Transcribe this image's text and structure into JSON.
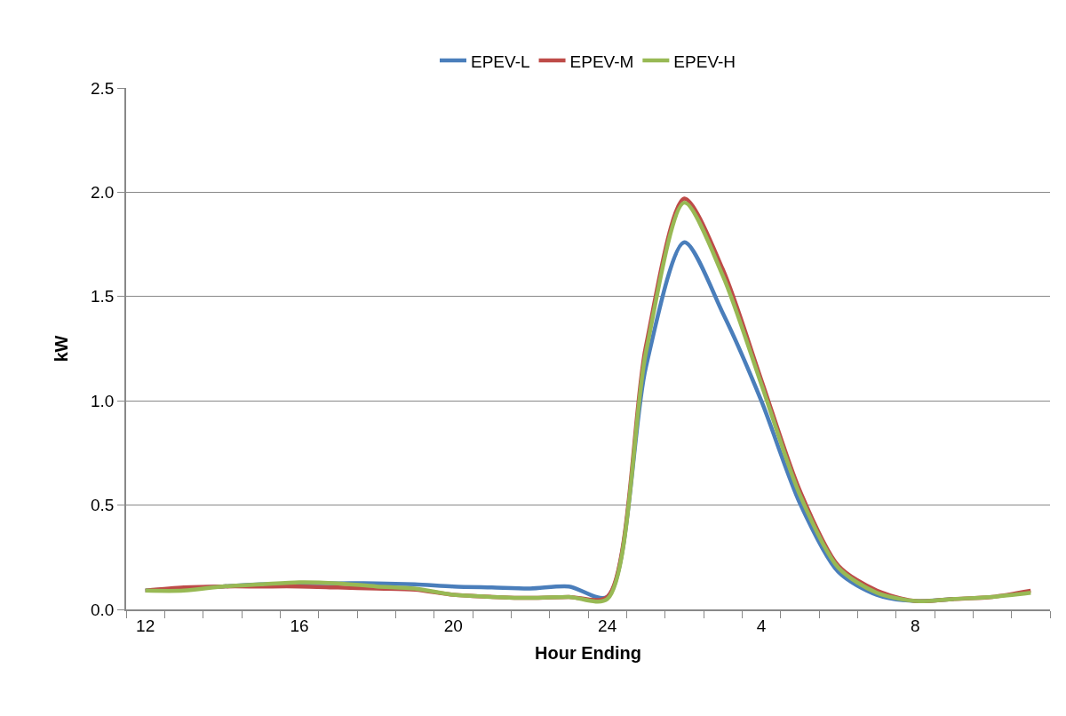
{
  "chart_data": {
    "type": "line",
    "xlabel": "Hour Ending",
    "ylabel": "kW",
    "categories": [
      "12",
      null,
      null,
      null,
      "16",
      null,
      null,
      null,
      "20",
      null,
      null,
      null,
      "24",
      null,
      null,
      null,
      "4",
      null,
      null,
      null,
      "8",
      null,
      null,
      null
    ],
    "series": [
      {
        "name": "EPEV-L",
        "color": "#4a7ebb",
        "values": [
          0.09,
          0.1,
          0.11,
          0.12,
          0.125,
          0.125,
          0.125,
          0.12,
          0.11,
          0.105,
          0.1,
          0.11,
          0.06,
          1.16,
          1.76,
          1.42,
          1.0,
          0.51,
          0.18,
          0.07,
          0.04,
          0.05,
          null,
          null
        ]
      },
      {
        "name": "EPEV-M",
        "color": "#be4b48",
        "values": [
          0.09,
          0.105,
          0.11,
          0.11,
          0.11,
          0.105,
          0.1,
          0.095,
          0.07,
          0.06,
          0.055,
          0.06,
          0.06,
          1.26,
          1.97,
          1.63,
          1.1,
          0.57,
          0.21,
          0.09,
          0.04,
          0.05,
          0.06,
          0.09
        ]
      },
      {
        "name": "EPEV-H",
        "color": "#98b954",
        "values": [
          0.09,
          0.09,
          0.11,
          0.12,
          0.13,
          0.125,
          0.11,
          0.1,
          0.07,
          0.06,
          0.055,
          0.06,
          0.05,
          1.23,
          1.95,
          1.6,
          1.08,
          0.55,
          0.2,
          0.08,
          0.04,
          0.05,
          0.06,
          0.08
        ]
      }
    ],
    "ylim": [
      0,
      2.5
    ],
    "yticks": [
      {
        "value": 0,
        "label": "0.0"
      },
      {
        "value": 0.5,
        "label": "0.5"
      },
      {
        "value": 1,
        "label": "1.0"
      },
      {
        "value": 1.5,
        "label": "1.5"
      },
      {
        "value": 2,
        "label": "2.0"
      },
      {
        "value": 2.5,
        "label": "2.5"
      }
    ],
    "grid": "y",
    "legend": "top",
    "marker": "none",
    "line_style": "solid"
  }
}
